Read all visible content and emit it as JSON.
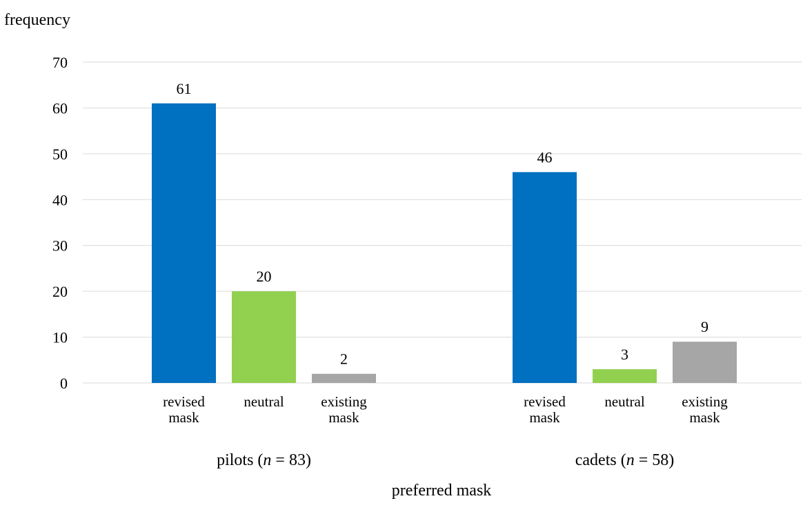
{
  "chart_data": {
    "type": "bar",
    "ylabel": "frequency",
    "xlabel": "preferred mask",
    "ylim": [
      0,
      70
    ],
    "yticks": [
      0,
      10,
      20,
      30,
      40,
      50,
      60,
      70
    ],
    "grid": true,
    "groups": [
      {
        "label_prefix": "pilots (",
        "label_n": "n",
        "label_suffix": " = 83)",
        "bars": [
          {
            "category": [
              "revised",
              "mask"
            ],
            "value": 61,
            "color": "#0070C0"
          },
          {
            "category": [
              "neutral"
            ],
            "value": 20,
            "color": "#92D050"
          },
          {
            "category": [
              "existing",
              "mask"
            ],
            "value": 2,
            "color": "#A6A6A6"
          }
        ]
      },
      {
        "label_prefix": "cadets (",
        "label_n": "n",
        "label_suffix": " = 58)",
        "bars": [
          {
            "category": [
              "revised",
              "mask"
            ],
            "value": 46,
            "color": "#0070C0"
          },
          {
            "category": [
              "neutral"
            ],
            "value": 3,
            "color": "#92D050"
          },
          {
            "category": [
              "existing",
              "mask"
            ],
            "value": 9,
            "color": "#A6A6A6"
          }
        ]
      }
    ]
  }
}
